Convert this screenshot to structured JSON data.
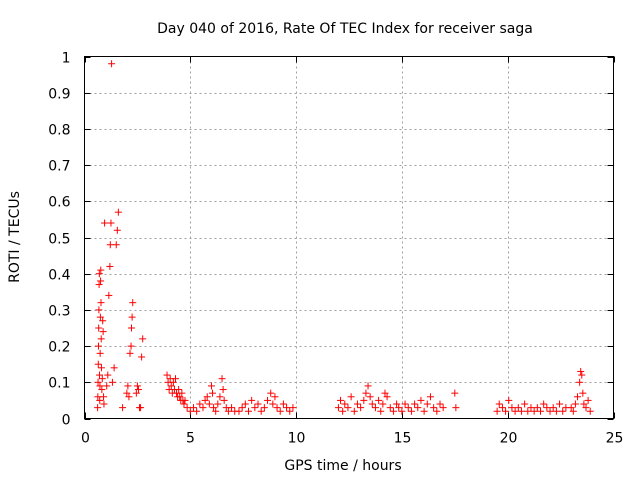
{
  "chart_data": {
    "type": "scatter",
    "title": "Day 040 of 2016, Rate Of TEC Index for receiver saga",
    "xlabel": "GPS time / hours",
    "ylabel": "ROTI / TECUs",
    "xlim": [
      0,
      25
    ],
    "ylim": [
      0,
      1
    ],
    "xticks": [
      0,
      5,
      10,
      15,
      20,
      25
    ],
    "xtick_labels": [
      "0",
      "5",
      "10",
      "15",
      "20",
      "25"
    ],
    "yticks": [
      0,
      0.1,
      0.2,
      0.3,
      0.4,
      0.5,
      0.6,
      0.7,
      0.8,
      0.9,
      1
    ],
    "ytick_labels": [
      "0",
      "0.1",
      "0.2",
      "0.3",
      "0.4",
      "0.5",
      "0.6",
      "0.7",
      "0.8",
      "0.9",
      "1"
    ],
    "grid": true,
    "marker": "plus",
    "color": "#ff0000",
    "series": [
      {
        "name": "ROTI",
        "points": [
          [
            0.62,
            0.03
          ],
          [
            0.63,
            0.06
          ],
          [
            0.64,
            0.1
          ],
          [
            0.65,
            0.15
          ],
          [
            0.66,
            0.2
          ],
          [
            0.67,
            0.25
          ],
          [
            0.68,
            0.3
          ],
          [
            0.69,
            0.37
          ],
          [
            0.7,
            0.4
          ],
          [
            0.71,
            0.12
          ],
          [
            0.72,
            0.05
          ],
          [
            0.73,
            0.09
          ],
          [
            0.74,
            0.18
          ],
          [
            0.75,
            0.28
          ],
          [
            0.76,
            0.38
          ],
          [
            0.77,
            0.41
          ],
          [
            0.78,
            0.32
          ],
          [
            0.79,
            0.22
          ],
          [
            0.8,
            0.14
          ],
          [
            0.82,
            0.08
          ],
          [
            0.84,
            0.11
          ],
          [
            0.86,
            0.27
          ],
          [
            0.88,
            0.24
          ],
          [
            0.9,
            0.06
          ],
          [
            0.92,
            0.04
          ],
          [
            0.95,
            0.54
          ],
          [
            1.05,
            0.09
          ],
          [
            1.1,
            0.12
          ],
          [
            1.15,
            0.34
          ],
          [
            1.2,
            0.42
          ],
          [
            1.22,
            0.48
          ],
          [
            1.25,
            0.54
          ],
          [
            1.28,
            0.98
          ],
          [
            1.32,
            0.1
          ],
          [
            1.4,
            0.14
          ],
          [
            1.5,
            0.48
          ],
          [
            1.55,
            0.52
          ],
          [
            1.6,
            0.57
          ],
          [
            1.8,
            0.03
          ],
          [
            2.0,
            0.07
          ],
          [
            2.05,
            0.09
          ],
          [
            2.1,
            0.06
          ],
          [
            2.15,
            0.18
          ],
          [
            2.2,
            0.2
          ],
          [
            2.22,
            0.25
          ],
          [
            2.25,
            0.28
          ],
          [
            2.28,
            0.32
          ],
          [
            2.45,
            0.07
          ],
          [
            2.5,
            0.09
          ],
          [
            2.55,
            0.08
          ],
          [
            2.6,
            0.03
          ],
          [
            2.65,
            0.03
          ],
          [
            2.7,
            0.17
          ],
          [
            2.75,
            0.22
          ],
          [
            3.9,
            0.12
          ],
          [
            3.95,
            0.1
          ],
          [
            4.0,
            0.08
          ],
          [
            4.05,
            0.11
          ],
          [
            4.1,
            0.09
          ],
          [
            4.15,
            0.07
          ],
          [
            4.2,
            0.1
          ],
          [
            4.25,
            0.08
          ],
          [
            4.3,
            0.11
          ],
          [
            4.35,
            0.07
          ],
          [
            4.4,
            0.06
          ],
          [
            4.45,
            0.08
          ],
          [
            4.5,
            0.06
          ],
          [
            4.55,
            0.05
          ],
          [
            4.6,
            0.07
          ],
          [
            4.65,
            0.05
          ],
          [
            4.7,
            0.04
          ],
          [
            4.75,
            0.05
          ],
          [
            4.85,
            0.03
          ],
          [
            5.0,
            0.02
          ],
          [
            5.15,
            0.03
          ],
          [
            5.3,
            0.02
          ],
          [
            5.45,
            0.04
          ],
          [
            5.6,
            0.03
          ],
          [
            5.7,
            0.05
          ],
          [
            5.8,
            0.06
          ],
          [
            5.9,
            0.04
          ],
          [
            6.0,
            0.09
          ],
          [
            6.05,
            0.07
          ],
          [
            6.1,
            0.03
          ],
          [
            6.2,
            0.02
          ],
          [
            6.3,
            0.04
          ],
          [
            6.4,
            0.06
          ],
          [
            6.5,
            0.11
          ],
          [
            6.55,
            0.08
          ],
          [
            6.6,
            0.05
          ],
          [
            6.7,
            0.03
          ],
          [
            6.8,
            0.02
          ],
          [
            6.95,
            0.03
          ],
          [
            7.1,
            0.02
          ],
          [
            7.3,
            0.02
          ],
          [
            7.45,
            0.03
          ],
          [
            7.6,
            0.04
          ],
          [
            7.75,
            0.02
          ],
          [
            7.9,
            0.05
          ],
          [
            8.05,
            0.03
          ],
          [
            8.2,
            0.04
          ],
          [
            8.35,
            0.02
          ],
          [
            8.5,
            0.03
          ],
          [
            8.65,
            0.05
          ],
          [
            8.8,
            0.07
          ],
          [
            8.9,
            0.04
          ],
          [
            9.0,
            0.06
          ],
          [
            9.1,
            0.03
          ],
          [
            9.25,
            0.02
          ],
          [
            9.4,
            0.04
          ],
          [
            9.55,
            0.03
          ],
          [
            9.7,
            0.02
          ],
          [
            9.85,
            0.03
          ],
          [
            12.0,
            0.03
          ],
          [
            12.1,
            0.05
          ],
          [
            12.2,
            0.02
          ],
          [
            12.3,
            0.04
          ],
          [
            12.45,
            0.03
          ],
          [
            12.6,
            0.06
          ],
          [
            12.75,
            0.02
          ],
          [
            12.9,
            0.04
          ],
          [
            13.05,
            0.03
          ],
          [
            13.2,
            0.05
          ],
          [
            13.3,
            0.07
          ],
          [
            13.4,
            0.09
          ],
          [
            13.5,
            0.06
          ],
          [
            13.6,
            0.04
          ],
          [
            13.75,
            0.03
          ],
          [
            13.9,
            0.05
          ],
          [
            14.0,
            0.02
          ],
          [
            14.1,
            0.04
          ],
          [
            14.2,
            0.07
          ],
          [
            14.3,
            0.06
          ],
          [
            14.45,
            0.03
          ],
          [
            14.6,
            0.02
          ],
          [
            14.75,
            0.04
          ],
          [
            14.85,
            0.03
          ],
          [
            15.0,
            0.02
          ],
          [
            15.15,
            0.04
          ],
          [
            15.3,
            0.03
          ],
          [
            15.45,
            0.02
          ],
          [
            15.6,
            0.04
          ],
          [
            15.75,
            0.03
          ],
          [
            15.9,
            0.05
          ],
          [
            16.05,
            0.02
          ],
          [
            16.2,
            0.04
          ],
          [
            16.35,
            0.06
          ],
          [
            16.5,
            0.03
          ],
          [
            16.65,
            0.02
          ],
          [
            16.8,
            0.04
          ],
          [
            16.95,
            0.03
          ],
          [
            17.5,
            0.07
          ],
          [
            17.55,
            0.03
          ],
          [
            19.5,
            0.02
          ],
          [
            19.6,
            0.04
          ],
          [
            19.75,
            0.03
          ],
          [
            19.9,
            0.02
          ],
          [
            20.05,
            0.05
          ],
          [
            20.2,
            0.03
          ],
          [
            20.35,
            0.02
          ],
          [
            20.5,
            0.03
          ],
          [
            20.65,
            0.02
          ],
          [
            20.8,
            0.04
          ],
          [
            20.95,
            0.02
          ],
          [
            21.1,
            0.03
          ],
          [
            21.25,
            0.02
          ],
          [
            21.4,
            0.03
          ],
          [
            21.55,
            0.02
          ],
          [
            21.7,
            0.04
          ],
          [
            21.85,
            0.03
          ],
          [
            22.0,
            0.02
          ],
          [
            22.15,
            0.03
          ],
          [
            22.3,
            0.02
          ],
          [
            22.45,
            0.04
          ],
          [
            22.6,
            0.02
          ],
          [
            22.75,
            0.03
          ],
          [
            23.0,
            0.03
          ],
          [
            23.1,
            0.02
          ],
          [
            23.2,
            0.04
          ],
          [
            23.3,
            0.06
          ],
          [
            23.4,
            0.1
          ],
          [
            23.45,
            0.13
          ],
          [
            23.5,
            0.12
          ],
          [
            23.55,
            0.07
          ],
          [
            23.6,
            0.04
          ],
          [
            23.7,
            0.03
          ],
          [
            23.8,
            0.05
          ],
          [
            23.9,
            0.02
          ]
        ]
      }
    ]
  }
}
